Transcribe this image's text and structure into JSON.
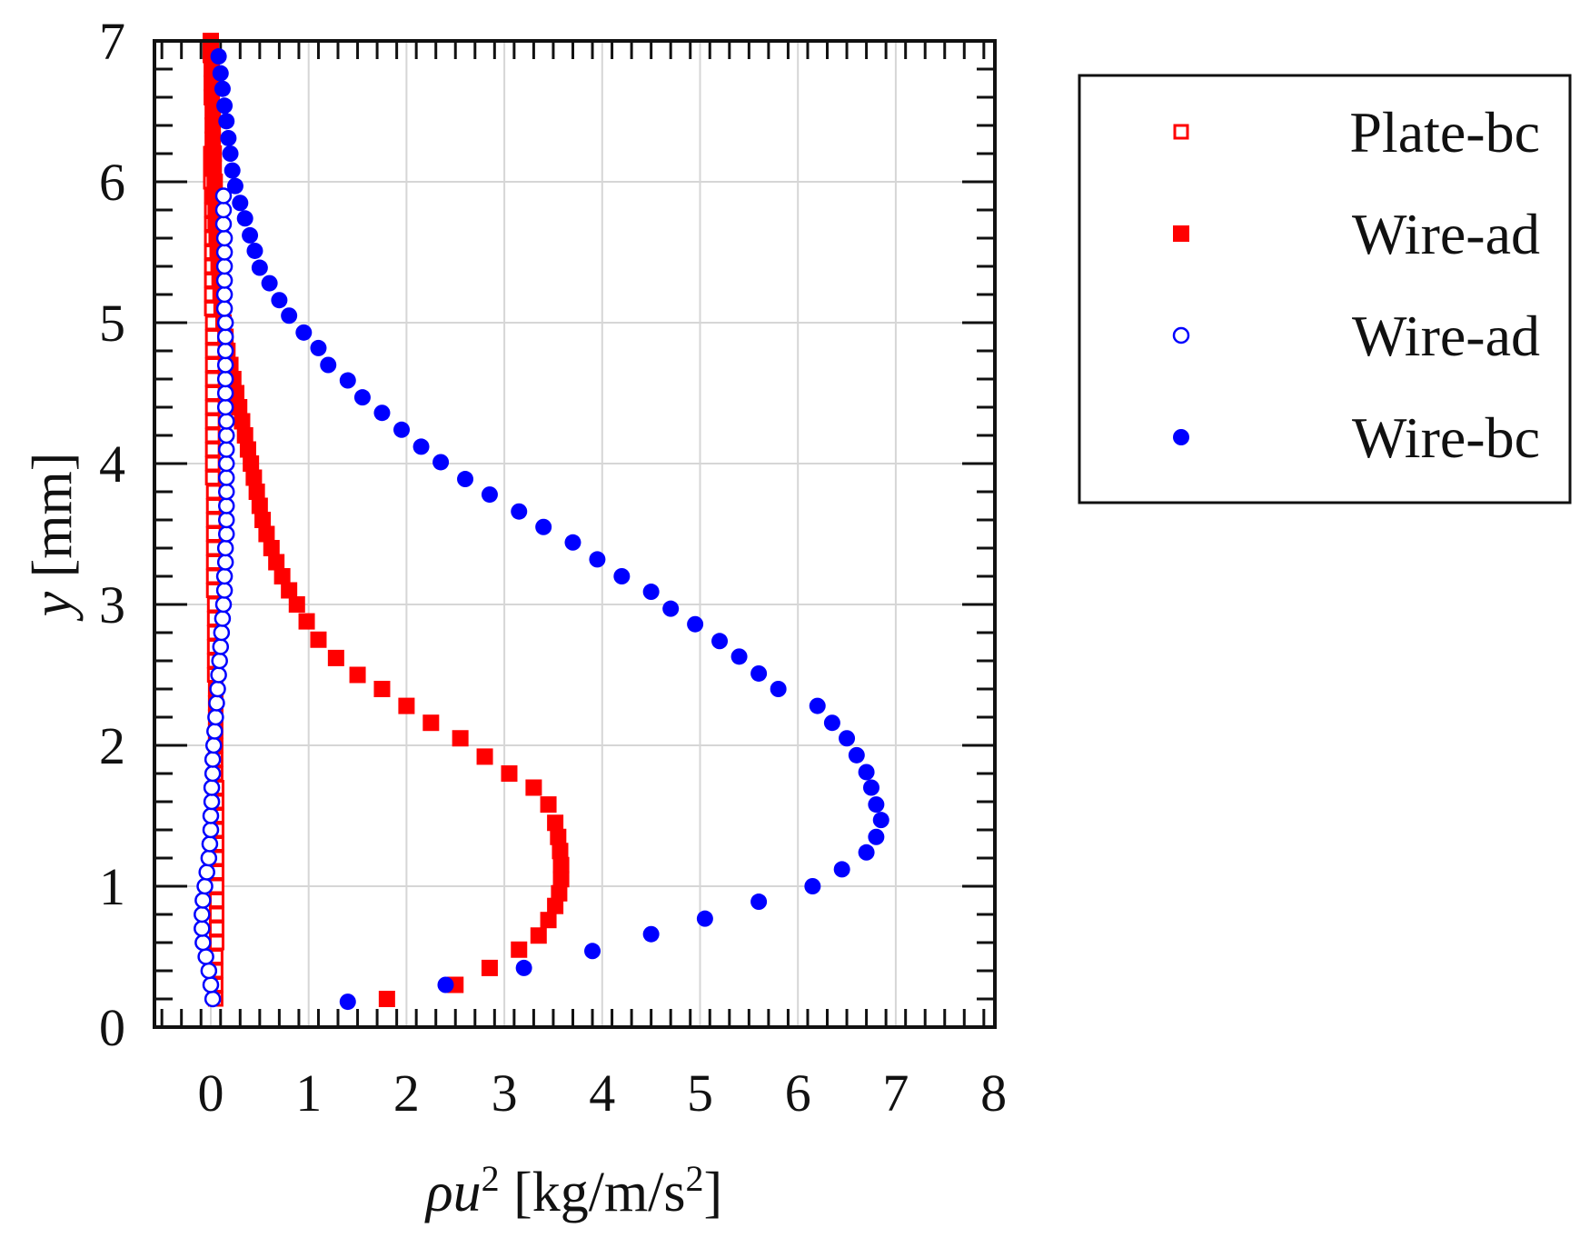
{
  "chart_data": {
    "type": "scatter",
    "title": "",
    "xlabel_var": "ρu",
    "xlabel_sup": "2",
    "xlabel_unit": " [kg/m/s",
    "xlabel_unit_sup": "2",
    "xlabel_close": "]",
    "ylabel_var": "y",
    "ylabel_unit": " [mm]",
    "xlim": [
      -0.6,
      8
    ],
    "ylim": [
      0,
      7
    ],
    "xticks": [
      0,
      1,
      2,
      3,
      4,
      5,
      6,
      7,
      8
    ],
    "yticks": [
      0,
      1,
      2,
      3,
      4,
      5,
      6,
      7
    ],
    "grid": true,
    "legend_position": "right",
    "series": [
      {
        "name": "Plate-bc",
        "marker": "square-open",
        "color": "#ff0000",
        "points": [
          [
            0.05,
            0.2
          ],
          [
            0.05,
            0.3
          ],
          [
            0.05,
            0.4
          ],
          [
            0.05,
            0.5
          ],
          [
            0.06,
            0.6
          ],
          [
            0.06,
            0.7
          ],
          [
            0.06,
            0.8
          ],
          [
            0.06,
            0.9
          ],
          [
            0.06,
            1.0
          ],
          [
            0.06,
            1.1
          ],
          [
            0.06,
            1.2
          ],
          [
            0.06,
            1.3
          ],
          [
            0.06,
            1.4
          ],
          [
            0.06,
            1.5
          ],
          [
            0.06,
            1.6
          ],
          [
            0.06,
            1.7
          ],
          [
            0.05,
            1.8
          ],
          [
            0.05,
            1.9
          ],
          [
            0.05,
            2.0
          ],
          [
            0.05,
            2.1
          ],
          [
            0.05,
            2.2
          ],
          [
            0.05,
            2.3
          ],
          [
            0.05,
            2.4
          ],
          [
            0.04,
            2.5
          ],
          [
            0.04,
            2.6
          ],
          [
            0.04,
            2.7
          ],
          [
            0.04,
            2.8
          ],
          [
            0.04,
            2.9
          ],
          [
            0.04,
            3.0
          ],
          [
            0.03,
            3.1
          ],
          [
            0.03,
            3.2
          ],
          [
            0.03,
            3.3
          ],
          [
            0.03,
            3.4
          ],
          [
            0.03,
            3.5
          ],
          [
            0.03,
            3.6
          ],
          [
            0.03,
            3.7
          ],
          [
            0.03,
            3.8
          ],
          [
            0.02,
            3.9
          ],
          [
            0.02,
            4.0
          ],
          [
            0.02,
            4.1
          ],
          [
            0.02,
            4.2
          ],
          [
            0.02,
            4.3
          ],
          [
            0.02,
            4.4
          ],
          [
            0.02,
            4.5
          ],
          [
            0.02,
            4.6
          ],
          [
            0.02,
            4.7
          ],
          [
            0.02,
            4.8
          ],
          [
            0.02,
            4.9
          ],
          [
            0.02,
            5.0
          ],
          [
            0.01,
            5.1
          ],
          [
            0.01,
            5.2
          ],
          [
            0.01,
            5.3
          ],
          [
            0.01,
            5.4
          ],
          [
            0.01,
            5.5
          ],
          [
            0.01,
            5.6
          ],
          [
            0.01,
            5.7
          ],
          [
            0.01,
            5.8
          ],
          [
            0.01,
            5.9
          ],
          [
            0.0,
            6.0
          ],
          [
            0.0,
            6.1
          ],
          [
            0.0,
            6.2
          ]
        ]
      },
      {
        "name": "Wire-ad",
        "marker": "square-filled",
        "color": "#ff0000",
        "points": [
          [
            1.8,
            0.2
          ],
          [
            2.5,
            0.3
          ],
          [
            2.85,
            0.42
          ],
          [
            3.15,
            0.55
          ],
          [
            3.35,
            0.65
          ],
          [
            3.45,
            0.76
          ],
          [
            3.52,
            0.86
          ],
          [
            3.56,
            0.95
          ],
          [
            3.58,
            1.05
          ],
          [
            3.58,
            1.15
          ],
          [
            3.57,
            1.25
          ],
          [
            3.55,
            1.35
          ],
          [
            3.52,
            1.45
          ],
          [
            3.45,
            1.58
          ],
          [
            3.3,
            1.7
          ],
          [
            3.05,
            1.8
          ],
          [
            2.8,
            1.92
          ],
          [
            2.55,
            2.05
          ],
          [
            2.25,
            2.16
          ],
          [
            2.0,
            2.28
          ],
          [
            1.75,
            2.4
          ],
          [
            1.5,
            2.5
          ],
          [
            1.28,
            2.62
          ],
          [
            1.1,
            2.75
          ],
          [
            0.98,
            2.88
          ],
          [
            0.88,
            3.0
          ],
          [
            0.8,
            3.1
          ],
          [
            0.73,
            3.2
          ],
          [
            0.67,
            3.3
          ],
          [
            0.62,
            3.4
          ],
          [
            0.57,
            3.5
          ],
          [
            0.53,
            3.6
          ],
          [
            0.5,
            3.7
          ],
          [
            0.47,
            3.8
          ],
          [
            0.44,
            3.9
          ],
          [
            0.41,
            4.0
          ],
          [
            0.38,
            4.1
          ],
          [
            0.35,
            4.2
          ],
          [
            0.32,
            4.3
          ],
          [
            0.29,
            4.4
          ],
          [
            0.26,
            4.5
          ],
          [
            0.23,
            4.6
          ],
          [
            0.2,
            4.7
          ],
          [
            0.17,
            4.8
          ],
          [
            0.15,
            4.9
          ],
          [
            0.13,
            5.0
          ],
          [
            0.11,
            5.1
          ],
          [
            0.1,
            5.2
          ],
          [
            0.09,
            5.3
          ],
          [
            0.08,
            5.4
          ],
          [
            0.07,
            5.5
          ],
          [
            0.06,
            5.6
          ],
          [
            0.05,
            5.7
          ],
          [
            0.05,
            5.8
          ],
          [
            0.04,
            5.9
          ],
          [
            0.04,
            6.0
          ],
          [
            0.03,
            6.1
          ],
          [
            0.03,
            6.2
          ],
          [
            0.02,
            6.3
          ],
          [
            0.02,
            6.4
          ],
          [
            0.02,
            6.5
          ],
          [
            0.01,
            6.6
          ],
          [
            0.01,
            6.7
          ],
          [
            0.01,
            6.8
          ],
          [
            0.0,
            6.9
          ],
          [
            0.0,
            7.0
          ]
        ]
      },
      {
        "name": "Wire-ad",
        "marker": "circle-open",
        "color": "#0000ff",
        "points": [
          [
            0.02,
            0.2
          ],
          [
            0.0,
            0.3
          ],
          [
            -0.02,
            0.4
          ],
          [
            -0.05,
            0.5
          ],
          [
            -0.08,
            0.6
          ],
          [
            -0.09,
            0.7
          ],
          [
            -0.09,
            0.8
          ],
          [
            -0.08,
            0.9
          ],
          [
            -0.06,
            1.0
          ],
          [
            -0.04,
            1.1
          ],
          [
            -0.02,
            1.2
          ],
          [
            -0.01,
            1.3
          ],
          [
            0.0,
            1.4
          ],
          [
            0.0,
            1.5
          ],
          [
            0.01,
            1.6
          ],
          [
            0.01,
            1.7
          ],
          [
            0.02,
            1.8
          ],
          [
            0.02,
            1.9
          ],
          [
            0.03,
            2.0
          ],
          [
            0.04,
            2.1
          ],
          [
            0.05,
            2.2
          ],
          [
            0.06,
            2.3
          ],
          [
            0.07,
            2.4
          ],
          [
            0.08,
            2.5
          ],
          [
            0.09,
            2.6
          ],
          [
            0.1,
            2.7
          ],
          [
            0.11,
            2.8
          ],
          [
            0.12,
            2.9
          ],
          [
            0.13,
            3.0
          ],
          [
            0.14,
            3.1
          ],
          [
            0.14,
            3.2
          ],
          [
            0.15,
            3.3
          ],
          [
            0.15,
            3.4
          ],
          [
            0.16,
            3.5
          ],
          [
            0.16,
            3.6
          ],
          [
            0.16,
            3.7
          ],
          [
            0.16,
            3.8
          ],
          [
            0.16,
            3.9
          ],
          [
            0.16,
            4.0
          ],
          [
            0.16,
            4.1
          ],
          [
            0.16,
            4.2
          ],
          [
            0.16,
            4.3
          ],
          [
            0.15,
            4.4
          ],
          [
            0.15,
            4.5
          ],
          [
            0.15,
            4.6
          ],
          [
            0.15,
            4.7
          ],
          [
            0.15,
            4.8
          ],
          [
            0.15,
            4.9
          ],
          [
            0.15,
            5.0
          ],
          [
            0.14,
            5.1
          ],
          [
            0.14,
            5.2
          ],
          [
            0.14,
            5.3
          ],
          [
            0.14,
            5.4
          ],
          [
            0.14,
            5.5
          ],
          [
            0.14,
            5.6
          ],
          [
            0.13,
            5.7
          ],
          [
            0.13,
            5.8
          ],
          [
            0.13,
            5.9
          ]
        ]
      },
      {
        "name": "Wire-bc",
        "marker": "circle-filled",
        "color": "#0000ff",
        "points": [
          [
            1.4,
            0.18
          ],
          [
            2.4,
            0.3
          ],
          [
            3.2,
            0.42
          ],
          [
            3.9,
            0.54
          ],
          [
            4.5,
            0.66
          ],
          [
            5.05,
            0.77
          ],
          [
            5.6,
            0.89
          ],
          [
            6.15,
            1.0
          ],
          [
            6.45,
            1.12
          ],
          [
            6.7,
            1.24
          ],
          [
            6.8,
            1.35
          ],
          [
            6.85,
            1.47
          ],
          [
            6.8,
            1.58
          ],
          [
            6.75,
            1.7
          ],
          [
            6.7,
            1.81
          ],
          [
            6.6,
            1.93
          ],
          [
            6.5,
            2.05
          ],
          [
            6.35,
            2.16
          ],
          [
            6.2,
            2.28
          ],
          [
            5.8,
            2.4
          ],
          [
            5.6,
            2.51
          ],
          [
            5.4,
            2.63
          ],
          [
            5.2,
            2.74
          ],
          [
            4.95,
            2.86
          ],
          [
            4.7,
            2.97
          ],
          [
            4.5,
            3.09
          ],
          [
            4.2,
            3.2
          ],
          [
            3.95,
            3.32
          ],
          [
            3.7,
            3.44
          ],
          [
            3.4,
            3.55
          ],
          [
            3.15,
            3.66
          ],
          [
            2.85,
            3.78
          ],
          [
            2.6,
            3.89
          ],
          [
            2.35,
            4.01
          ],
          [
            2.15,
            4.12
          ],
          [
            1.95,
            4.24
          ],
          [
            1.75,
            4.36
          ],
          [
            1.55,
            4.47
          ],
          [
            1.4,
            4.59
          ],
          [
            1.2,
            4.7
          ],
          [
            1.1,
            4.82
          ],
          [
            0.95,
            4.93
          ],
          [
            0.8,
            5.05
          ],
          [
            0.7,
            5.16
          ],
          [
            0.6,
            5.28
          ],
          [
            0.5,
            5.39
          ],
          [
            0.45,
            5.51
          ],
          [
            0.4,
            5.62
          ],
          [
            0.35,
            5.74
          ],
          [
            0.3,
            5.85
          ],
          [
            0.25,
            5.97
          ],
          [
            0.22,
            6.08
          ],
          [
            0.2,
            6.2
          ],
          [
            0.18,
            6.31
          ],
          [
            0.16,
            6.43
          ],
          [
            0.14,
            6.54
          ],
          [
            0.12,
            6.66
          ],
          [
            0.1,
            6.77
          ],
          [
            0.08,
            6.89
          ]
        ]
      }
    ]
  }
}
